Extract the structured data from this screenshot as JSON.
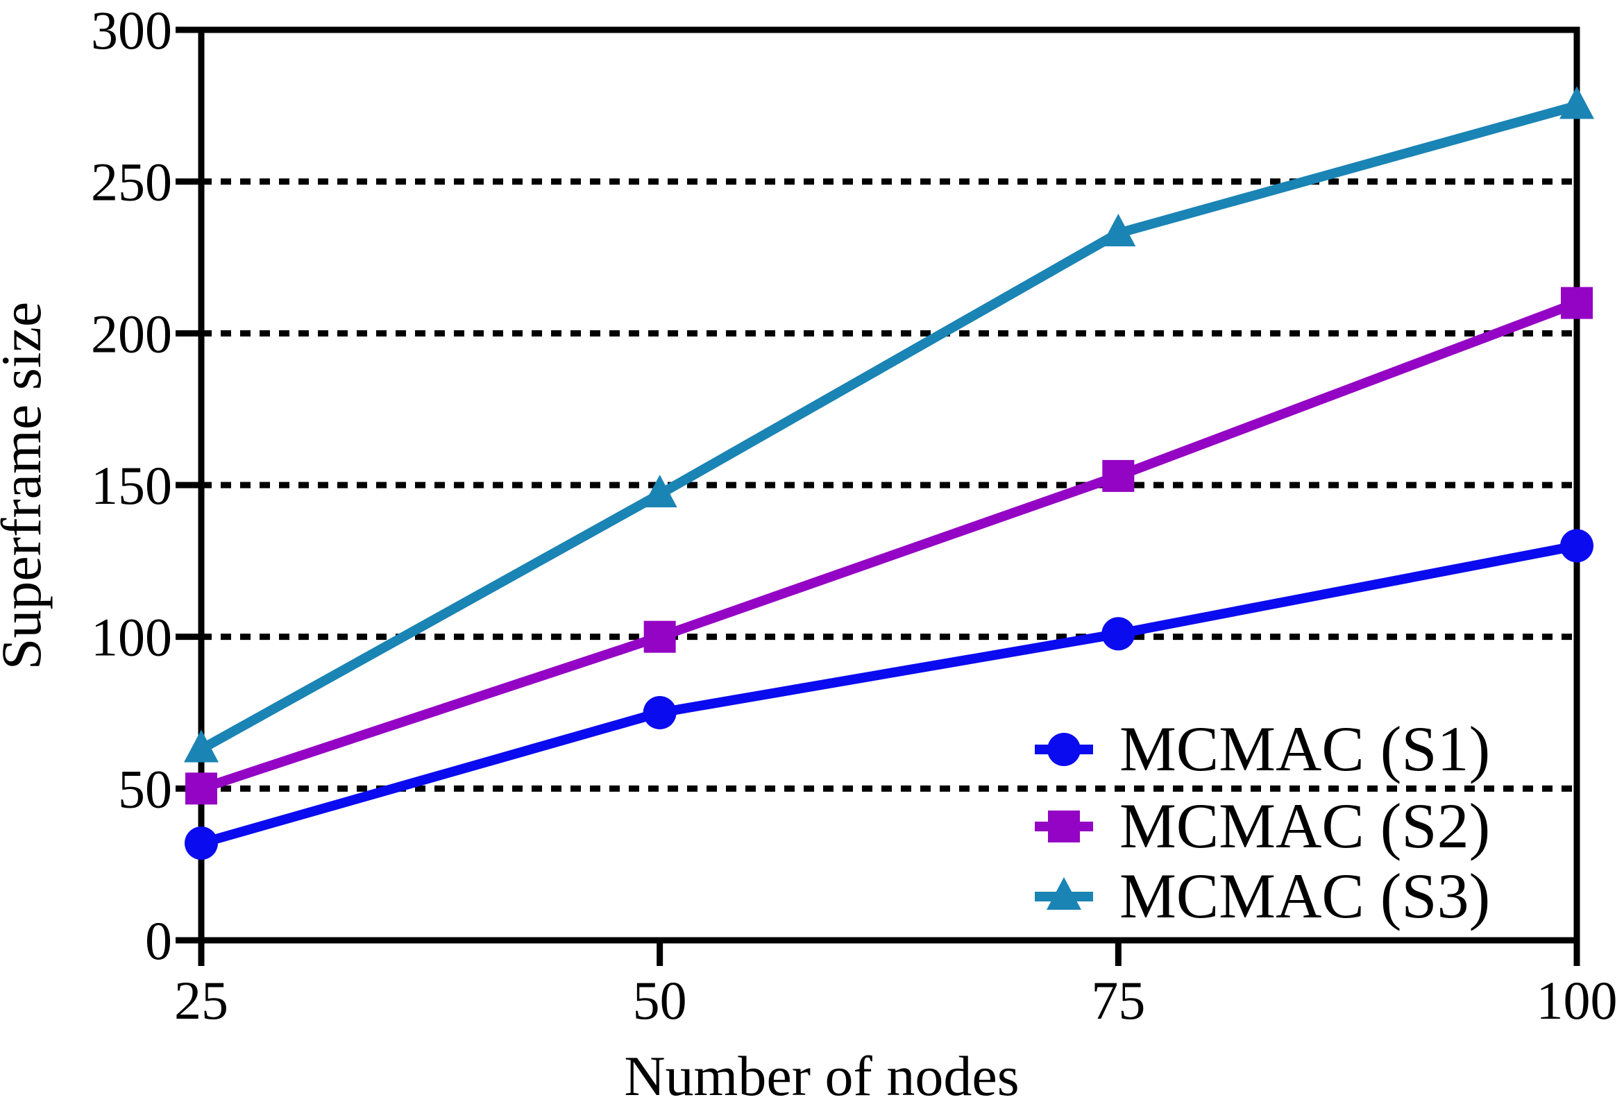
{
  "figure": {
    "background": "#ffffff",
    "axis_color": "#000000",
    "grid_style": "horizontal dotted black lines"
  },
  "chart_data": {
    "type": "line",
    "title": "",
    "xlabel": "Number of nodes",
    "ylabel": "Superframe size",
    "x": [
      25,
      50,
      75,
      100
    ],
    "xticks": [
      "25",
      "50",
      "75",
      "100"
    ],
    "yticks": [
      "0",
      "50",
      "100",
      "150",
      "200",
      "250",
      "300"
    ],
    "ytick_values": [
      0,
      50,
      100,
      150,
      200,
      250,
      300
    ],
    "xtick_values": [
      25,
      50,
      75,
      100
    ],
    "xlim": [
      25,
      100
    ],
    "ylim": [
      0,
      300
    ],
    "grid": "horizontal-dotted",
    "legend_position": "inside-lower-right",
    "series": [
      {
        "name": "MCMAC (S1)",
        "marker": "circle",
        "color": "#0b0bf0",
        "values": [
          32,
          75,
          101,
          130
        ]
      },
      {
        "name": "MCMAC (S2)",
        "marker": "square",
        "color": "#9404c4",
        "values": [
          50,
          100,
          153,
          210
        ]
      },
      {
        "name": "MCMAC (S3)",
        "marker": "triangle",
        "color": "#1a84b4",
        "values": [
          63,
          147,
          233,
          275
        ]
      }
    ]
  }
}
